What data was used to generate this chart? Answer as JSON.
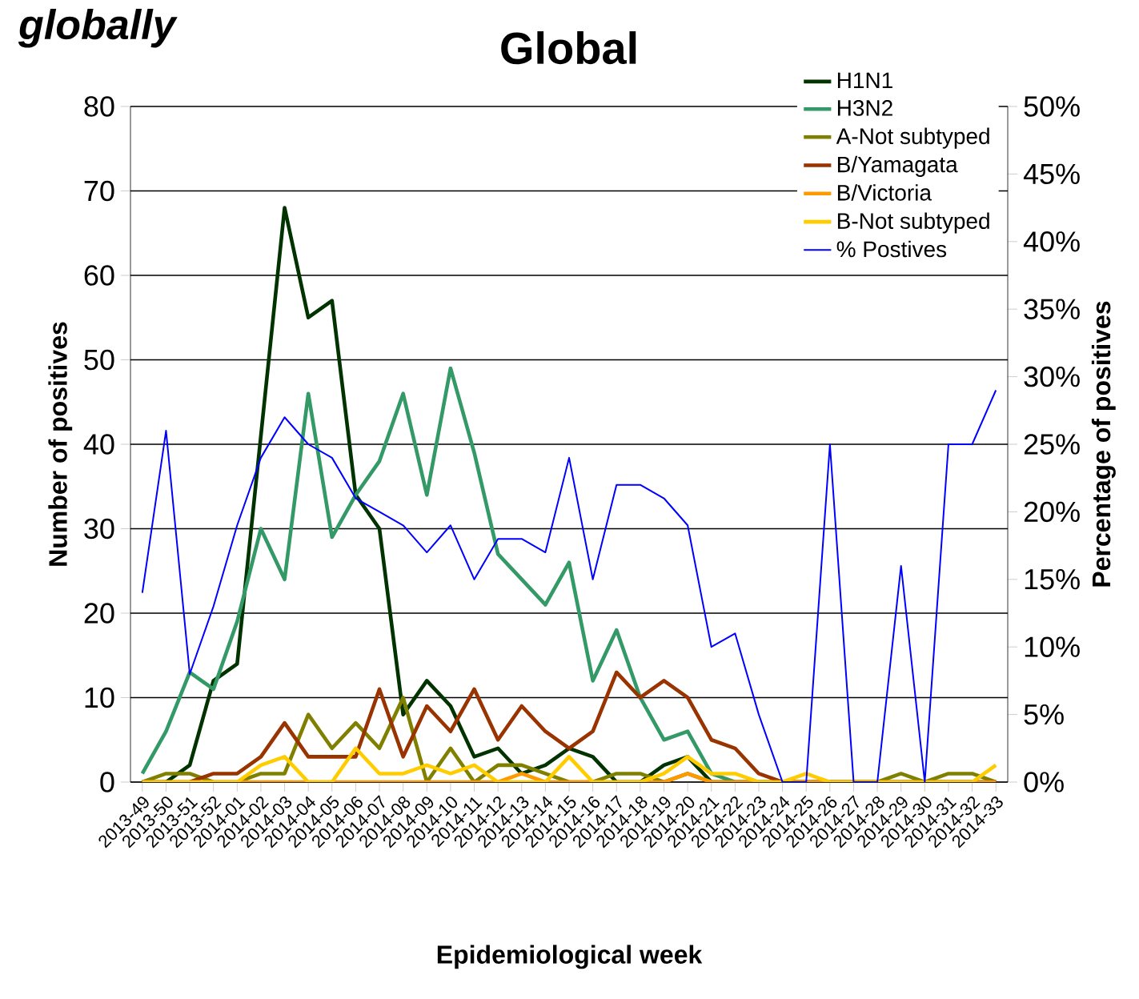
{
  "chart_data": {
    "type": "line",
    "title": "Global",
    "xlabel": "Epidemiological week",
    "ylabel": "Number of positives",
    "y2label": "Percentage of positives",
    "annotations": [
      "globally"
    ],
    "categories": [
      "2013-49",
      "2013-50",
      "2013-51",
      "2013-52",
      "2014-01",
      "2014-02",
      "2014-03",
      "2014-04",
      "2014-05",
      "2014-06",
      "2014-07",
      "2014-08",
      "2014-09",
      "2014-10",
      "2014-11",
      "2014-12",
      "2014-13",
      "2014-14",
      "2014-15",
      "2014-16",
      "2014-17",
      "2014-18",
      "2014-19",
      "2014-20",
      "2014-21",
      "2014-22",
      "2014-23",
      "2014-24",
      "2014-25",
      "2014-26",
      "2014-27",
      "2014-28",
      "2014-29",
      "2014-30",
      "2014-31",
      "2014-32",
      "2014-33"
    ],
    "series": [
      {
        "name": "H1N1",
        "color": "#003300",
        "values": [
          0,
          0,
          2,
          12,
          14,
          41,
          68,
          55,
          57,
          34,
          30,
          8,
          12,
          9,
          3,
          4,
          1,
          2,
          4,
          3,
          0,
          0,
          2,
          3,
          0,
          0,
          0,
          0,
          0,
          0,
          0,
          0,
          0,
          0,
          0,
          0,
          0
        ]
      },
      {
        "name": "H3N2",
        "color": "#339966",
        "values": [
          1,
          6,
          13,
          11,
          19,
          30,
          24,
          46,
          29,
          34,
          38,
          46,
          34,
          49,
          39,
          27,
          24,
          21,
          26,
          12,
          18,
          10,
          5,
          6,
          1,
          0,
          0,
          null,
          null,
          null,
          null,
          null,
          null,
          null,
          null,
          null,
          null
        ]
      },
      {
        "name": "A-Not subtyped",
        "color": "#808000",
        "values": [
          0,
          1,
          1,
          0,
          0,
          1,
          1,
          8,
          4,
          7,
          4,
          10,
          0,
          4,
          0,
          2,
          2,
          1,
          0,
          0,
          1,
          1,
          0,
          1,
          0,
          0,
          0,
          0,
          0,
          0,
          0,
          0,
          1,
          0,
          1,
          1,
          0
        ]
      },
      {
        "name": "B/Yamagata",
        "color": "#993300",
        "values": [
          0,
          0,
          0,
          1,
          1,
          3,
          7,
          3,
          3,
          3,
          11,
          3,
          9,
          6,
          11,
          5,
          9,
          6,
          4,
          6,
          13,
          10,
          12,
          10,
          5,
          4,
          1,
          0,
          0,
          0,
          0,
          0,
          0,
          0,
          0,
          0,
          0
        ]
      },
      {
        "name": "B/Victoria",
        "color": "#ff9900",
        "values": [
          0,
          0,
          0,
          0,
          0,
          0,
          0,
          0,
          0,
          0,
          0,
          0,
          0,
          0,
          0,
          0,
          1,
          0,
          0,
          0,
          0,
          0,
          0,
          1,
          0,
          0,
          0,
          0,
          0,
          0,
          0,
          0,
          0,
          0,
          0,
          0,
          0
        ]
      },
      {
        "name": "B-Not subtyped",
        "color": "#ffcc00",
        "values": [
          0,
          0,
          0,
          0,
          0,
          2,
          3,
          0,
          0,
          4,
          1,
          1,
          2,
          1,
          2,
          0,
          0,
          0,
          3,
          0,
          0,
          0,
          1,
          3,
          1,
          1,
          0,
          0,
          1,
          0,
          0,
          0,
          0,
          0,
          0,
          0,
          2
        ]
      },
      {
        "name": "% Postives",
        "color": "#0000ff",
        "axis": "y2",
        "values": [
          14,
          26,
          8,
          13,
          19,
          24,
          27,
          25,
          24,
          21,
          20,
          19,
          17,
          19,
          15,
          18,
          18,
          17,
          24,
          15,
          22,
          22,
          21,
          19,
          10,
          11,
          5,
          0,
          0,
          25,
          0,
          0,
          16,
          0,
          25,
          25,
          29
        ]
      }
    ],
    "ylim": [
      0,
      80
    ],
    "yticks": [
      0,
      10,
      20,
      30,
      40,
      50,
      60,
      70,
      80
    ],
    "y2lim": [
      0,
      50
    ],
    "y2ticks": [
      {
        "value": 0,
        "label": "0%"
      },
      {
        "value": 5,
        "label": "5%"
      },
      {
        "value": 10,
        "label": "10%"
      },
      {
        "value": 15,
        "label": "15%"
      },
      {
        "value": 20,
        "label": "20%"
      },
      {
        "value": 25,
        "label": "25%"
      },
      {
        "value": 30,
        "label": "30%"
      },
      {
        "value": 35,
        "label": "35%"
      },
      {
        "value": 40,
        "label": "40%"
      },
      {
        "value": 45,
        "label": "45%"
      },
      {
        "value": 50,
        "label": "50%"
      }
    ],
    "grid": "y",
    "legend": "top right"
  }
}
